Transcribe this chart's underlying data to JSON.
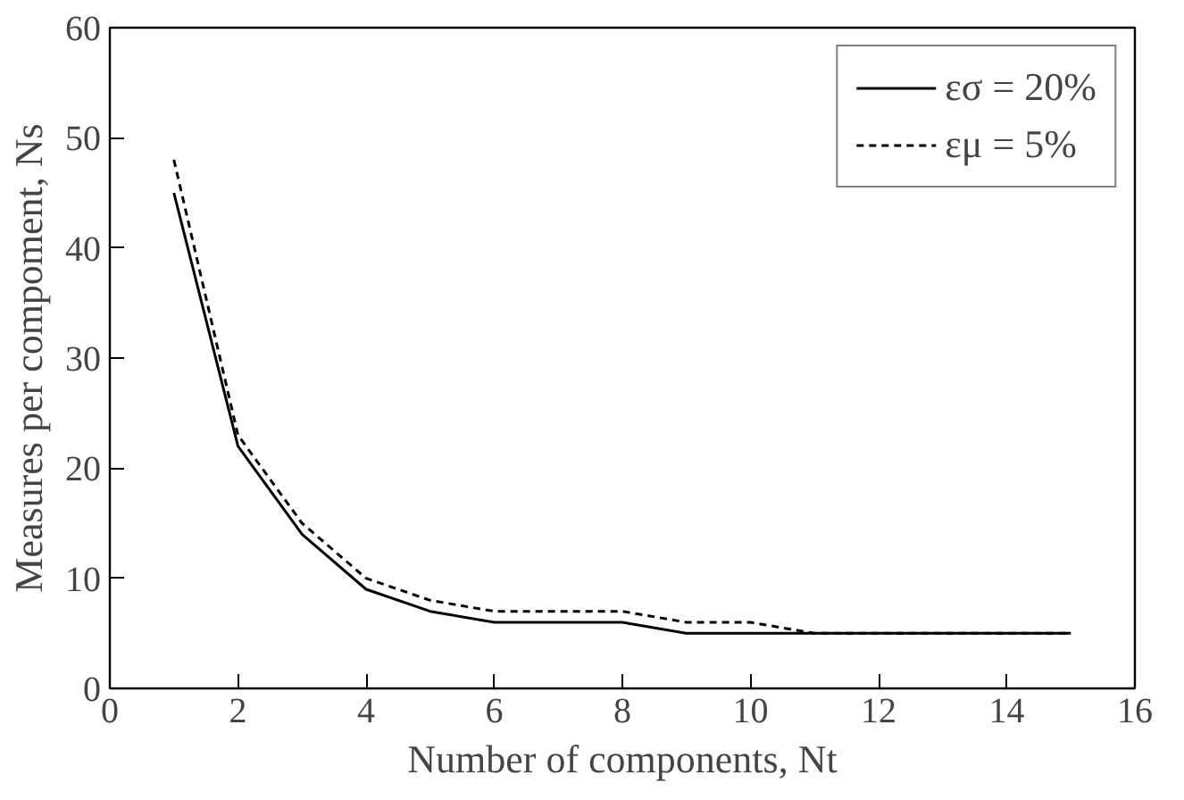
{
  "chart_data": {
    "type": "line",
    "xlabel": "Number of components, Nt",
    "ylabel": "Measures per compoment, Ns",
    "x": [
      1,
      2,
      3,
      4,
      5,
      6,
      7,
      8,
      9,
      10,
      11,
      12,
      13,
      14,
      15
    ],
    "series": [
      {
        "name": "εσ = 20%",
        "color": "#000000",
        "line_style": "solid",
        "values": [
          45,
          22,
          14,
          9,
          7,
          6,
          6,
          6,
          5,
          5,
          5,
          5,
          5,
          5,
          5
        ]
      },
      {
        "name": "εμ = 5%",
        "color": "#000000",
        "line_style": "dashed",
        "values": [
          48,
          23,
          15,
          10,
          8,
          7,
          7,
          7,
          6,
          6,
          5,
          5,
          5,
          5,
          5
        ]
      }
    ],
    "xlim": [
      0,
      16
    ],
    "xticks": [
      0,
      2,
      4,
      6,
      8,
      10,
      12,
      14,
      16
    ],
    "ylim": [
      0,
      60
    ],
    "yticks": [
      0,
      10,
      20,
      30,
      40,
      50,
      60
    ],
    "grid": false,
    "legend": "top right",
    "marker": "none"
  }
}
